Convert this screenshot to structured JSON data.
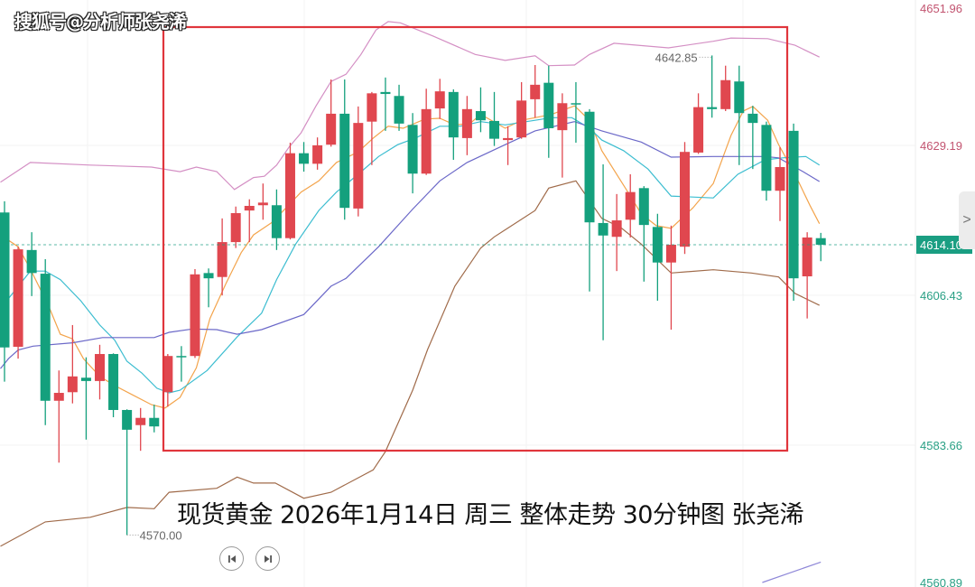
{
  "watermark": "搜狐号@分析师张尧浠",
  "caption": "现货黄金 2026年1月14日 周三 整体走势 30分钟图 张尧浠",
  "controls": {
    "prev_icon": "skip-to-start-icon",
    "next_icon": "skip-to-end-icon",
    "scroll_icon": "chevron-right-icon",
    "scroll_label": ">"
  },
  "colors": {
    "up": "#e0474f",
    "down": "#14a07d",
    "ma_orange": "#f3a44c",
    "ma_cyan": "#3cbdd0",
    "ma_purple": "#6b68c8",
    "band_upper": "#d48fc4",
    "band_lower": "#a06b4a",
    "ma_long": "#8f88d8",
    "highlight_box": "#e0363c",
    "last_price_bg": "#1a9e82",
    "axis_up_text": "#c25470",
    "axis_down_text": "#2aa085"
  },
  "chart_data": {
    "type": "candlestick",
    "title": "",
    "y_ticks": [
      "4651.96",
      "4629.19",
      "4606.43",
      "4583.66",
      "4560.89"
    ],
    "ylim": [
      4562.1,
      4651.3
    ],
    "last_price": "4614.10",
    "annotations": {
      "high": "4642.85",
      "low": "4570.00"
    },
    "grid": true,
    "candles_ohlc": [
      [
        4619.0,
        4620.7,
        4593.3,
        4598.5
      ],
      [
        4598.6,
        4613.8,
        4596.8,
        4613.4
      ],
      [
        4613.3,
        4616.0,
        4606.3,
        4609.8
      ],
      [
        4609.7,
        4611.9,
        4586.7,
        4590.4
      ],
      [
        4590.4,
        4595.0,
        4581.0,
        4591.6
      ],
      [
        4591.7,
        4601.9,
        4590.0,
        4594.1
      ],
      [
        4593.9,
        4597.0,
        4584.5,
        4593.4
      ],
      [
        4593.4,
        4598.9,
        4590.6,
        4597.5
      ],
      [
        4597.5,
        4597.6,
        4587.9,
        4589.0
      ],
      [
        4589.0,
        4589.1,
        4570.0,
        4586.0
      ],
      [
        4586.7,
        4589.3,
        4582.8,
        4587.8
      ],
      [
        4587.8,
        4589.8,
        4585.6,
        4586.5
      ],
      [
        4591.7,
        4597.5,
        4589.5,
        4597.2
      ],
      [
        4597.2,
        4598.7,
        4593.3,
        4597.0
      ],
      [
        4597.2,
        4610.4,
        4596.9,
        4609.6
      ],
      [
        4609.8,
        4610.5,
        4604.6,
        4609.0
      ],
      [
        4609.2,
        4618.1,
        4606.4,
        4614.5
      ],
      [
        4614.5,
        4619.9,
        4613.6,
        4618.9
      ],
      [
        4619.3,
        4621.0,
        4614.5,
        4620.0
      ],
      [
        4620.1,
        4623.4,
        4617.9,
        4620.5
      ],
      [
        4620.1,
        4622.5,
        4613.3,
        4615.1
      ],
      [
        4615.1,
        4629.6,
        4614.9,
        4628.0
      ],
      [
        4628.0,
        4629.7,
        4625.2,
        4626.4
      ],
      [
        4626.4,
        4630.4,
        4625.5,
        4629.2
      ],
      [
        4629.3,
        4639.2,
        4629.0,
        4634.0
      ],
      [
        4634.0,
        4639.2,
        4617.9,
        4619.7
      ],
      [
        4619.6,
        4635.1,
        4618.4,
        4632.6
      ],
      [
        4632.8,
        4637.3,
        4626.2,
        4637.1
      ],
      [
        4637.3,
        4639.5,
        4631.4,
        4637.0
      ],
      [
        4636.7,
        4638.4,
        4631.4,
        4632.5
      ],
      [
        4632.3,
        4634.1,
        4621.9,
        4624.9
      ],
      [
        4624.9,
        4637.8,
        4624.7,
        4634.7
      ],
      [
        4634.8,
        4639.3,
        4633.2,
        4637.4
      ],
      [
        4637.3,
        4637.7,
        4627.0,
        4630.4
      ],
      [
        4630.3,
        4636.7,
        4627.7,
        4634.7
      ],
      [
        4634.4,
        4638.0,
        4631.2,
        4633.0
      ],
      [
        4632.9,
        4637.3,
        4629.1,
        4630.2
      ],
      [
        4630.0,
        4632.1,
        4626.2,
        4630.3
      ],
      [
        4630.4,
        4638.8,
        4630.2,
        4636.0
      ],
      [
        4636.2,
        4641.4,
        4633.4,
        4638.4
      ],
      [
        4638.7,
        4641.3,
        4627.3,
        4631.8
      ],
      [
        4631.5,
        4637.1,
        4624.3,
        4635.6
      ],
      [
        4635.6,
        4638.8,
        4629.6,
        4635.4
      ],
      [
        4634.3,
        4634.7,
        4607.0,
        4617.5
      ],
      [
        4617.4,
        4626.3,
        4599.6,
        4615.5
      ],
      [
        4615.3,
        4621.8,
        4610.1,
        4617.8
      ],
      [
        4617.9,
        4624.8,
        4615.2,
        4622.1
      ],
      [
        4622.7,
        4623.0,
        4608.5,
        4617.1
      ],
      [
        4616.8,
        4618.8,
        4605.6,
        4611.4
      ],
      [
        4611.4,
        4617.0,
        4601.2,
        4614.1
      ],
      [
        4613.8,
        4629.7,
        4612.7,
        4628.2
      ],
      [
        4628.1,
        4637.1,
        4627.9,
        4635.0
      ],
      [
        4635.0,
        4642.85,
        4633.4,
        4634.7
      ],
      [
        4634.7,
        4641.3,
        4634.4,
        4639.1
      ],
      [
        4638.9,
        4641.3,
        4626.2,
        4634.1
      ],
      [
        4634.0,
        4635.2,
        4625.6,
        4632.6
      ],
      [
        4632.3,
        4632.8,
        4620.8,
        4622.3
      ],
      [
        4622.3,
        4628.9,
        4617.7,
        4625.9
      ],
      [
        4631.4,
        4632.5,
        4605.6,
        4609.0
      ],
      [
        4609.3,
        4616.0,
        4602.9,
        4615.2
      ],
      [
        4615.1,
        4615.9,
        4611.6,
        4614.1
      ]
    ],
    "lines": [
      {
        "key": "band_upper",
        "points": [
          [
            -0.3,
            4623.6
          ],
          [
            1.9,
            4626.6
          ],
          [
            6.3,
            4626.2
          ],
          [
            10.8,
            4625.9
          ],
          [
            12.9,
            4625.2
          ],
          [
            14.1,
            4625.9
          ],
          [
            15.6,
            4625.2
          ],
          [
            16.9,
            4622.5
          ],
          [
            18.3,
            4624.3
          ],
          [
            19.1,
            4624.5
          ],
          [
            20.0,
            4626.2
          ],
          [
            20.9,
            4628.9
          ],
          [
            21.8,
            4631.1
          ],
          [
            22.9,
            4635.2
          ],
          [
            24.0,
            4638.9
          ],
          [
            25.1,
            4640.0
          ],
          [
            26.2,
            4643.0
          ],
          [
            27.3,
            4646.7
          ],
          [
            28.2,
            4648.0
          ],
          [
            29.1,
            4647.8
          ],
          [
            31.5,
            4645.8
          ],
          [
            34.6,
            4643.0
          ],
          [
            36.8,
            4642.1
          ],
          [
            39.0,
            4642.8
          ],
          [
            40.0,
            4641.3
          ],
          [
            41.9,
            4641.4
          ],
          [
            43.0,
            4643.0
          ],
          [
            44.8,
            4644.7
          ],
          [
            48.8,
            4644.0
          ],
          [
            52.1,
            4645.0
          ],
          [
            53.4,
            4645.5
          ],
          [
            56.1,
            4645.4
          ],
          [
            58.1,
            4644.4
          ],
          [
            59.9,
            4642.6
          ]
        ]
      },
      {
        "key": "ma_orange",
        "points": [
          [
            -0.3,
            4615.6
          ],
          [
            1.0,
            4613.8
          ],
          [
            1.9,
            4610.4
          ],
          [
            3.2,
            4605.0
          ],
          [
            4.1,
            4600.5
          ],
          [
            5.0,
            4599.8
          ],
          [
            5.8,
            4596.8
          ],
          [
            7.0,
            4594.1
          ],
          [
            8.1,
            4592.7
          ],
          [
            9.4,
            4591.3
          ],
          [
            10.8,
            4589.8
          ],
          [
            11.8,
            4589.3
          ],
          [
            12.9,
            4590.9
          ],
          [
            14.1,
            4595.4
          ],
          [
            15.1,
            4602.9
          ],
          [
            16.3,
            4608.3
          ],
          [
            17.4,
            4612.9
          ],
          [
            18.3,
            4615.6
          ],
          [
            19.6,
            4617.4
          ],
          [
            20.7,
            4619.7
          ],
          [
            21.8,
            4622.1
          ],
          [
            23.1,
            4623.8
          ],
          [
            24.4,
            4626.6
          ],
          [
            26.0,
            4628.2
          ],
          [
            27.1,
            4630.3
          ],
          [
            28.2,
            4632.1
          ],
          [
            29.3,
            4631.8
          ],
          [
            30.9,
            4633.2
          ],
          [
            32.0,
            4633.3
          ],
          [
            33.1,
            4632.3
          ],
          [
            34.2,
            4632.5
          ],
          [
            35.0,
            4633.9
          ],
          [
            36.8,
            4631.8
          ],
          [
            38.0,
            4633.0
          ],
          [
            39.0,
            4633.4
          ],
          [
            40.2,
            4633.9
          ],
          [
            41.9,
            4635.2
          ],
          [
            43.0,
            4633.0
          ],
          [
            43.9,
            4628.4
          ],
          [
            45.7,
            4622.5
          ],
          [
            46.8,
            4618.8
          ],
          [
            47.9,
            4617.0
          ],
          [
            49.0,
            4616.6
          ],
          [
            50.6,
            4619.7
          ],
          [
            52.1,
            4623.4
          ],
          [
            53.4,
            4630.7
          ],
          [
            54.3,
            4634.4
          ],
          [
            55.0,
            4635.1
          ],
          [
            56.1,
            4633.0
          ],
          [
            56.9,
            4629.3
          ],
          [
            58.1,
            4624.8
          ],
          [
            59.2,
            4620.1
          ],
          [
            59.9,
            4617.3
          ]
        ]
      },
      {
        "key": "ma_cyan",
        "points": [
          [
            -0.3,
            4604.4
          ],
          [
            1.9,
            4610.1
          ],
          [
            3.0,
            4610.1
          ],
          [
            4.1,
            4608.8
          ],
          [
            5.6,
            4605.6
          ],
          [
            7.0,
            4601.9
          ],
          [
            8.1,
            4599.6
          ],
          [
            9.0,
            4596.4
          ],
          [
            10.1,
            4594.6
          ],
          [
            11.2,
            4592.3
          ],
          [
            12.1,
            4591.6
          ],
          [
            12.9,
            4592.0
          ],
          [
            14.9,
            4595.0
          ],
          [
            17.1,
            4600.1
          ],
          [
            18.9,
            4603.7
          ],
          [
            20.0,
            4608.8
          ],
          [
            21.4,
            4614.2
          ],
          [
            23.1,
            4619.3
          ],
          [
            24.4,
            4622.1
          ],
          [
            26.0,
            4624.8
          ],
          [
            27.5,
            4627.5
          ],
          [
            28.9,
            4629.3
          ],
          [
            30.2,
            4630.3
          ],
          [
            32.0,
            4632.1
          ],
          [
            33.5,
            4632.1
          ],
          [
            35.0,
            4632.8
          ],
          [
            36.8,
            4632.3
          ],
          [
            39.0,
            4633.0
          ],
          [
            40.2,
            4633.4
          ],
          [
            41.7,
            4633.4
          ],
          [
            43.0,
            4631.8
          ],
          [
            43.9,
            4630.0
          ],
          [
            45.5,
            4628.4
          ],
          [
            47.3,
            4625.6
          ],
          [
            49.0,
            4621.5
          ],
          [
            52.1,
            4621.2
          ],
          [
            53.9,
            4624.8
          ],
          [
            55.9,
            4627.0
          ],
          [
            57.2,
            4627.3
          ],
          [
            58.9,
            4627.5
          ],
          [
            59.9,
            4626.2
          ]
        ]
      },
      {
        "key": "ma_purple",
        "points": [
          [
            -0.3,
            4595.3
          ],
          [
            0.3,
            4596.8
          ],
          [
            1.0,
            4598.1
          ],
          [
            2.1,
            4598.7
          ],
          [
            5.0,
            4599.2
          ],
          [
            7.2,
            4600.0
          ],
          [
            11.0,
            4600.0
          ],
          [
            12.1,
            4600.8
          ],
          [
            13.8,
            4601.3
          ],
          [
            15.6,
            4601.2
          ],
          [
            17.1,
            4600.5
          ],
          [
            18.9,
            4601.2
          ],
          [
            22.0,
            4603.5
          ],
          [
            24.0,
            4607.8
          ],
          [
            25.1,
            4609.0
          ],
          [
            27.5,
            4613.8
          ],
          [
            30.0,
            4619.5
          ],
          [
            32.0,
            4623.8
          ],
          [
            34.0,
            4626.6
          ],
          [
            36.8,
            4629.3
          ],
          [
            39.0,
            4631.4
          ],
          [
            41.9,
            4632.8
          ],
          [
            43.9,
            4631.4
          ],
          [
            46.8,
            4629.7
          ],
          [
            49.0,
            4627.4
          ],
          [
            52.1,
            4627.5
          ],
          [
            55.9,
            4627.5
          ],
          [
            56.9,
            4627.3
          ],
          [
            58.7,
            4625.2
          ],
          [
            59.9,
            4623.7
          ]
        ]
      },
      {
        "key": "band_lower",
        "points": [
          [
            -0.3,
            4568.3
          ],
          [
            3.0,
            4572.0
          ],
          [
            6.3,
            4572.7
          ],
          [
            9.0,
            4574.2
          ],
          [
            11.0,
            4574.0
          ],
          [
            12.1,
            4576.5
          ],
          [
            15.6,
            4577.1
          ],
          [
            17.1,
            4578.8
          ],
          [
            18.3,
            4577.9
          ],
          [
            19.9,
            4577.9
          ],
          [
            22.0,
            4575.6
          ],
          [
            24.0,
            4576.5
          ],
          [
            27.1,
            4579.9
          ],
          [
            28.0,
            4582.7
          ],
          [
            30.0,
            4592.0
          ],
          [
            31.1,
            4598.2
          ],
          [
            33.1,
            4607.8
          ],
          [
            35.0,
            4613.6
          ],
          [
            36.0,
            4615.3
          ],
          [
            39.0,
            4619.3
          ],
          [
            40.0,
            4622.7
          ],
          [
            42.0,
            4623.8
          ],
          [
            43.9,
            4618.1
          ],
          [
            45.3,
            4616.7
          ],
          [
            46.8,
            4614.2
          ],
          [
            49.0,
            4609.8
          ],
          [
            52.1,
            4610.3
          ],
          [
            54.9,
            4609.8
          ],
          [
            56.9,
            4609.2
          ],
          [
            58.1,
            4606.7
          ],
          [
            59.9,
            4604.9
          ]
        ]
      },
      {
        "key": "ma_long",
        "points": [
          [
            55.7,
            4562.8
          ],
          [
            60.0,
            4565.9
          ]
        ]
      }
    ]
  }
}
